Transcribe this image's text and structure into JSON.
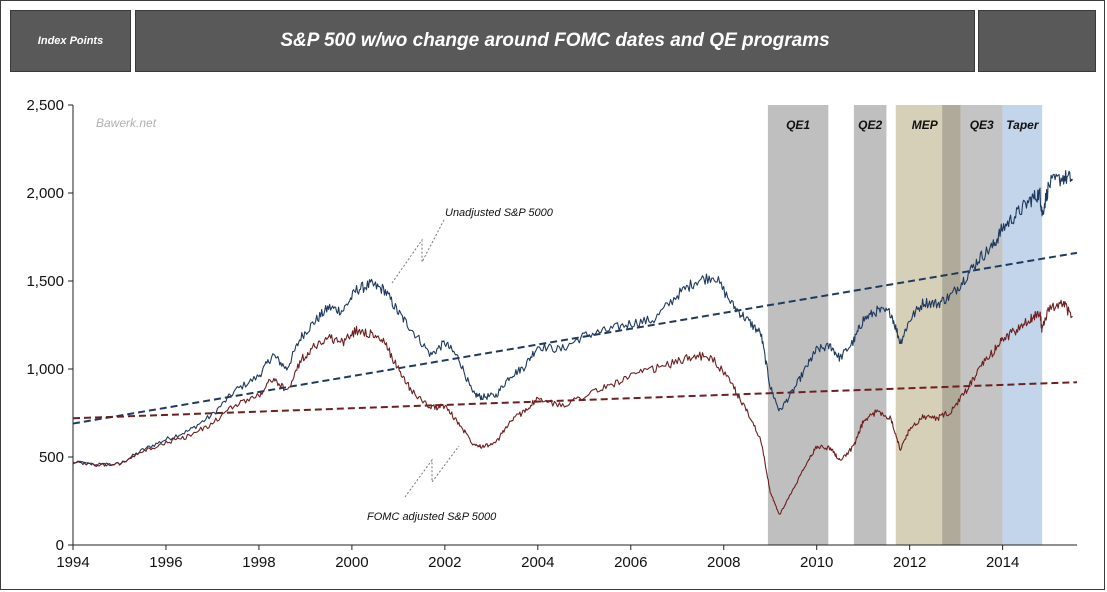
{
  "header": {
    "left_label": "Index Points",
    "title": "S&P 500 w/wo change around FOMC dates and QE programs",
    "right_label": ""
  },
  "watermark": "Bawerk.net",
  "chart_data": {
    "type": "line",
    "title": "S&P 500 w/wo change around FOMC dates and QE programs",
    "ylabel": "Index Points",
    "xlabel": "",
    "xlim": [
      1994,
      2015.6
    ],
    "ylim": [
      0,
      2500
    ],
    "x_ticks": [
      1994,
      1996,
      1998,
      2000,
      2002,
      2004,
      2006,
      2008,
      2010,
      2012,
      2014
    ],
    "y_ticks": [
      0,
      500,
      1000,
      1500,
      2000,
      2500
    ],
    "y_tick_labels": [
      "0",
      "500",
      "1,000",
      "1,500",
      "2,000",
      "2,500"
    ],
    "bands": [
      {
        "label": "QE1",
        "start": 2008.95,
        "end": 2010.25,
        "color": "#bfbfbf"
      },
      {
        "label": "QE2",
        "start": 2010.8,
        "end": 2011.5,
        "color": "#bfbfbf"
      },
      {
        "label": "MEP",
        "start": 2011.7,
        "end": 2012.95,
        "color": "#d7d0b8"
      },
      {
        "label": "",
        "start": 2012.7,
        "end": 2013.1,
        "color": "#b0aa9a"
      },
      {
        "label": "QE3",
        "start": 2013.1,
        "end": 2014.0,
        "color": "#c4c4c4"
      },
      {
        "label": "Taper",
        "start": 2014.0,
        "end": 2014.85,
        "color": "#c3d5ea"
      }
    ],
    "series": [
      {
        "name": "Unadjusted S&P 5000",
        "color": "#1f3a5f",
        "x": [
          1994.0,
          1994.5,
          1995.0,
          1995.5,
          1996.0,
          1996.5,
          1997.0,
          1997.5,
          1998.0,
          1998.3,
          1998.6,
          1998.9,
          1999.2,
          1999.5,
          1999.8,
          2000.1,
          2000.4,
          2000.7,
          2001.0,
          2001.3,
          2001.7,
          2002.0,
          2002.3,
          2002.6,
          2002.8,
          2003.1,
          2003.4,
          2003.7,
          2004.0,
          2004.5,
          2005.0,
          2005.5,
          2006.0,
          2006.5,
          2007.0,
          2007.4,
          2007.8,
          2008.2,
          2008.5,
          2008.8,
          2009.0,
          2009.2,
          2009.5,
          2009.8,
          2010.0,
          2010.3,
          2010.5,
          2010.8,
          2011.0,
          2011.3,
          2011.6,
          2011.8,
          2012.0,
          2012.3,
          2012.6,
          2012.9,
          2013.2,
          2013.5,
          2013.8,
          2014.0,
          2014.3,
          2014.6,
          2014.8,
          2014.85,
          2015.0,
          2015.3,
          2015.5
        ],
        "values": [
          470,
          455,
          460,
          540,
          600,
          650,
          740,
          880,
          960,
          1080,
          1000,
          1180,
          1270,
          1350,
          1330,
          1450,
          1480,
          1450,
          1320,
          1220,
          1080,
          1150,
          1060,
          860,
          840,
          850,
          960,
          1010,
          1130,
          1110,
          1190,
          1220,
          1260,
          1280,
          1420,
          1500,
          1530,
          1360,
          1280,
          1200,
          900,
          760,
          880,
          1020,
          1110,
          1130,
          1060,
          1160,
          1280,
          1330,
          1320,
          1150,
          1280,
          1380,
          1370,
          1420,
          1520,
          1630,
          1700,
          1800,
          1880,
          1960,
          2000,
          1880,
          2050,
          2090,
          2080
        ]
      },
      {
        "name": "FOMC adjusted S&P 5000",
        "color": "#6e1f1f",
        "x": [
          1994.0,
          1994.5,
          1995.0,
          1995.5,
          1996.0,
          1996.5,
          1997.0,
          1997.5,
          1998.0,
          1998.3,
          1998.6,
          1998.9,
          1999.2,
          1999.5,
          1999.8,
          2000.1,
          2000.4,
          2000.7,
          2001.0,
          2001.3,
          2001.7,
          2002.0,
          2002.3,
          2002.6,
          2002.8,
          2003.1,
          2003.4,
          2003.7,
          2004.0,
          2004.5,
          2005.0,
          2005.5,
          2006.0,
          2006.5,
          2007.0,
          2007.4,
          2007.8,
          2008.2,
          2008.5,
          2008.8,
          2009.0,
          2009.2,
          2009.5,
          2009.8,
          2010.0,
          2010.3,
          2010.5,
          2010.8,
          2011.0,
          2011.3,
          2011.6,
          2011.8,
          2012.0,
          2012.3,
          2012.6,
          2012.9,
          2013.2,
          2013.5,
          2013.8,
          2014.0,
          2014.3,
          2014.6,
          2014.8,
          2014.85,
          2015.0,
          2015.3,
          2015.5
        ],
        "values": [
          470,
          455,
          460,
          530,
          580,
          620,
          690,
          800,
          850,
          950,
          870,
          1050,
          1130,
          1180,
          1150,
          1220,
          1200,
          1150,
          1000,
          870,
          780,
          790,
          690,
          580,
          560,
          580,
          700,
          760,
          830,
          790,
          850,
          900,
          960,
          1000,
          1040,
          1080,
          1050,
          900,
          760,
          600,
          300,
          170,
          320,
          470,
          560,
          550,
          480,
          560,
          700,
          760,
          720,
          540,
          660,
          730,
          720,
          760,
          870,
          1000,
          1100,
          1170,
          1220,
          1280,
          1330,
          1220,
          1340,
          1370,
          1300
        ]
      }
    ],
    "trendlines": [
      {
        "series": "Unadjusted S&P 5000",
        "x": [
          1994.0,
          2015.6
        ],
        "values": [
          690,
          1660
        ],
        "style": "dashed",
        "color": "#1f3a5f"
      },
      {
        "series": "FOMC adjusted S&P 5000",
        "x": [
          1994.0,
          2015.6
        ],
        "values": [
          720,
          925
        ],
        "style": "dashed",
        "color": "#6e1f1f"
      }
    ],
    "annotations": [
      {
        "text": "Unadjusted S&P 5000",
        "target": "Unadjusted S&P 5000"
      },
      {
        "text": "FOMC adjusted S&P 5000",
        "target": "FOMC adjusted S&P 5000"
      }
    ]
  }
}
